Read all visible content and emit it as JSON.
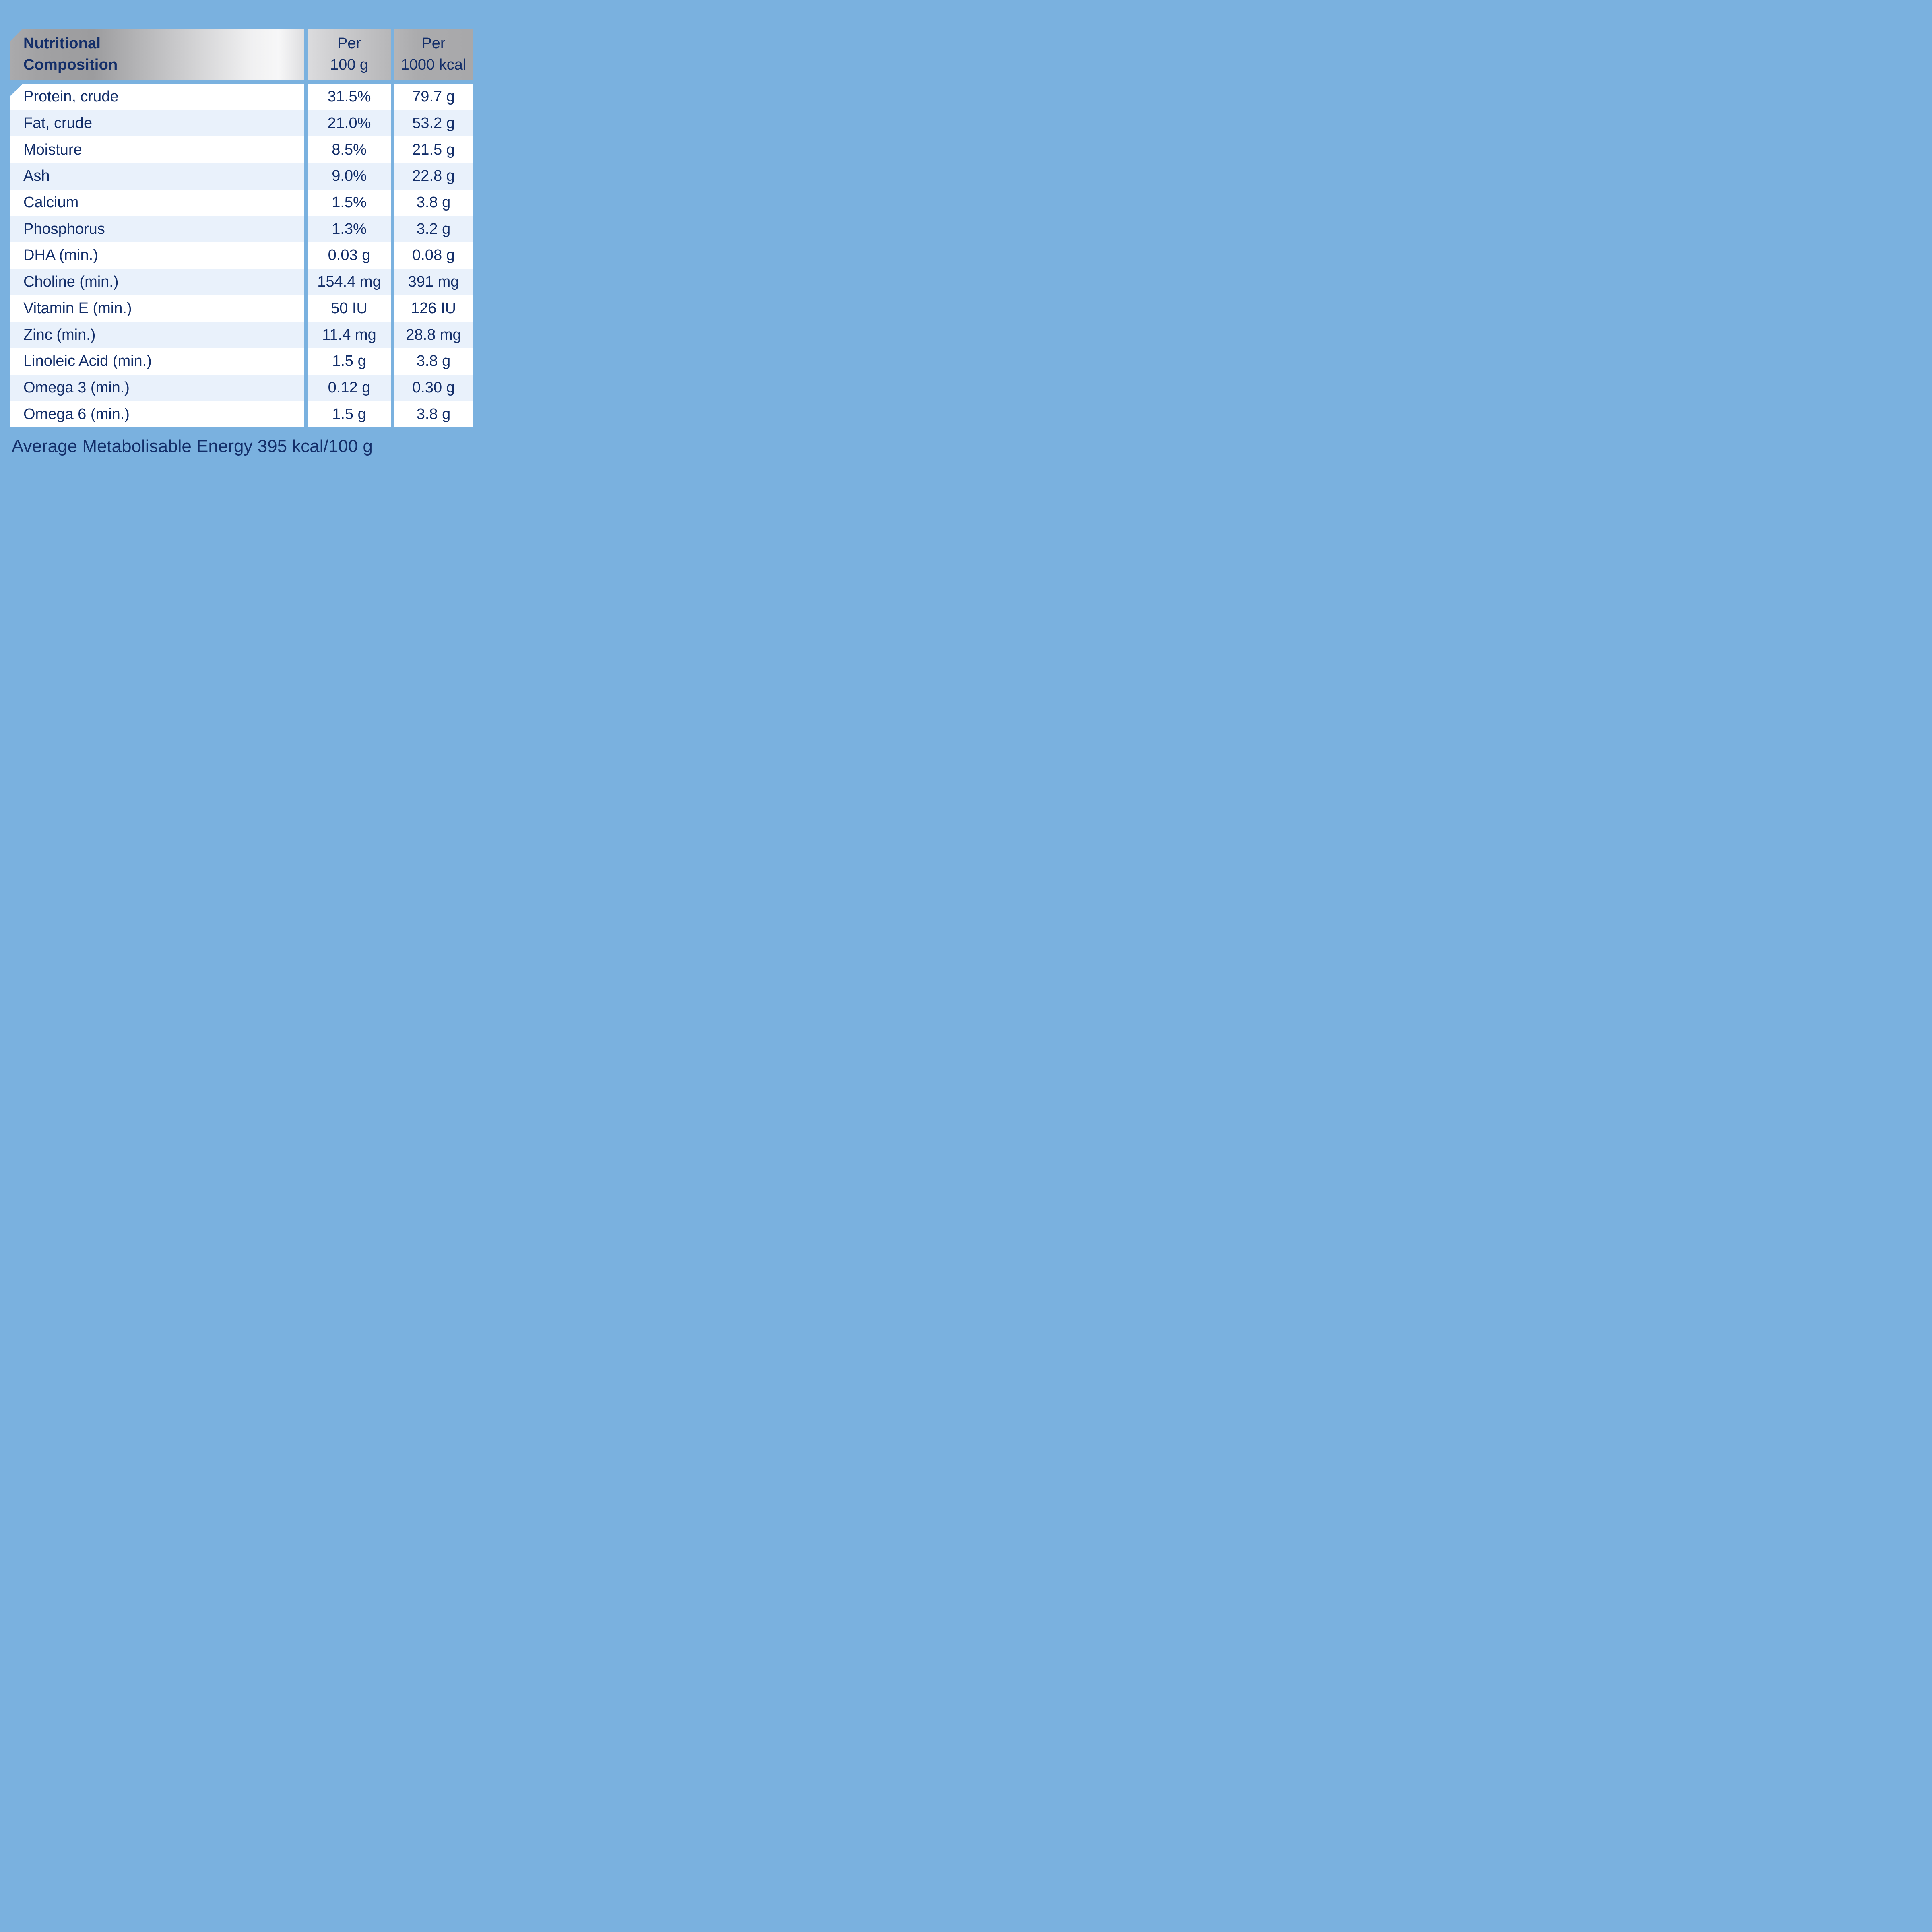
{
  "page": {
    "background_color": "#7ab1df",
    "text_color": "#132e69",
    "row_alt_color": "#e9f1fb",
    "row_white_color": "#ffffff"
  },
  "table": {
    "header": {
      "title": "Nutritional\nComposition",
      "col_per_100g": "Per\n100 g",
      "col_per_1000kcal": "Per\n1000 kcal"
    },
    "rows": [
      {
        "label": "Protein, crude",
        "per_100g": "31.5%",
        "per_1000kcal": "79.7 g"
      },
      {
        "label": "Fat, crude",
        "per_100g": "21.0%",
        "per_1000kcal": "53.2 g"
      },
      {
        "label": "Moisture",
        "per_100g": "8.5%",
        "per_1000kcal": "21.5 g"
      },
      {
        "label": "Ash",
        "per_100g": "9.0%",
        "per_1000kcal": "22.8 g"
      },
      {
        "label": "Calcium",
        "per_100g": "1.5%",
        "per_1000kcal": "3.8 g"
      },
      {
        "label": "Phosphorus",
        "per_100g": "1.3%",
        "per_1000kcal": "3.2 g"
      },
      {
        "label": "DHA (min.)",
        "per_100g": "0.03 g",
        "per_1000kcal": "0.08 g"
      },
      {
        "label": "Choline (min.)",
        "per_100g": "154.4 mg",
        "per_1000kcal": "391 mg"
      },
      {
        "label": "Vitamin E (min.)",
        "per_100g": "50 IU",
        "per_1000kcal": "126 IU"
      },
      {
        "label": "Zinc (min.)",
        "per_100g": "11.4 mg",
        "per_1000kcal": "28.8 mg"
      },
      {
        "label": "Linoleic Acid (min.)",
        "per_100g": "1.5 g",
        "per_1000kcal": "3.8 g"
      },
      {
        "label": "Omega 3 (min.)",
        "per_100g": "0.12 g",
        "per_1000kcal": "0.30 g"
      },
      {
        "label": "Omega 6 (min.)",
        "per_100g": "1.5 g",
        "per_1000kcal": "3.8 g"
      }
    ],
    "footer": "Average Metabolisable Energy 395 kcal/100 g"
  }
}
